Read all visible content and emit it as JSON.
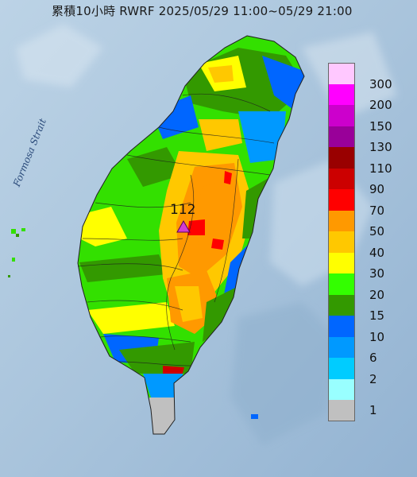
{
  "title": "累積10小時 RWRF 2025/05/29 11:00~05/29 21:00",
  "strait_label": "Formosa Strait",
  "max_marker": {
    "value": "112",
    "icon": "triangle-icon",
    "color": "#d23cd2"
  },
  "legend": [
    {
      "label": "300",
      "color": "#ffc8ff"
    },
    {
      "label": "200",
      "color": "#ff00ff"
    },
    {
      "label": "150",
      "color": "#cc00cc"
    },
    {
      "label": "130",
      "color": "#990099"
    },
    {
      "label": "110",
      "color": "#990000"
    },
    {
      "label": "90",
      "color": "#cc0000"
    },
    {
      "label": "70",
      "color": "#ff0000"
    },
    {
      "label": "50",
      "color": "#ff9900"
    },
    {
      "label": "40",
      "color": "#ffc800"
    },
    {
      "label": "30",
      "color": "#ffff00"
    },
    {
      "label": "20",
      "color": "#33ff00"
    },
    {
      "label": "15",
      "color": "#339900"
    },
    {
      "label": "10",
      "color": "#0066ff"
    },
    {
      "label": "6",
      "color": "#0099ff"
    },
    {
      "label": "2",
      "color": "#00ccff"
    },
    {
      "label": "1",
      "color": "#99ffff"
    },
    {
      "label": "",
      "color": "#c0c0c0"
    }
  ]
}
